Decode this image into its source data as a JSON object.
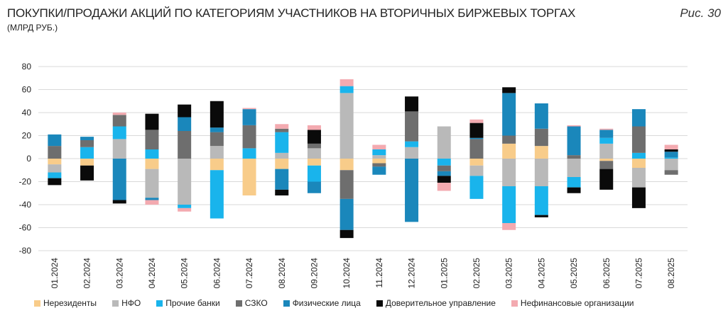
{
  "header": {
    "title": "ПОКУПКИ/ПРОДАЖИ АКЦИЙ ПО КАТЕГОРИЯМ УЧАСТНИКОВ НА ВТОРИЧНЫХ БИРЖЕВЫХ ТОРГАХ",
    "subtitle": "(МЛРД РУБ.)",
    "figure_label": "Рис. 30"
  },
  "colors": {
    "Нерезиденты": "#f8cc8a",
    "НФО": "#b9b9b9",
    "Прочие банки": "#19b4ec",
    "СЗКО": "#6e6e6e",
    "Физические лица": "#1a87bb",
    "Доверительное управление": "#0a0a0a",
    "Нефинансовые организации": "#f3aab0",
    "grid": "#d9d9d9"
  },
  "chart_data": {
    "type": "bar",
    "stacked": true,
    "title": "ПОКУПКИ/ПРОДАЖИ АКЦИЙ ПО КАТЕГОРИЯМ УЧАСТНИКОВ НА ВТОРИЧНЫХ БИРЖЕВЫХ ТОРГАХ",
    "subtitle": "(МЛРД РУБ.)",
    "xlabel": "",
    "ylabel": "",
    "ylim": [
      -80,
      80
    ],
    "yticks": [
      80,
      60,
      40,
      20,
      0,
      -20,
      -40,
      -60,
      -80
    ],
    "grid": true,
    "legend_position": "bottom",
    "categories": [
      "01.2024",
      "02.2024",
      "03.2024",
      "04.2024",
      "05.2024",
      "06.2024",
      "07.2024",
      "08.2024",
      "09.2024",
      "10.2024",
      "11.2024",
      "12.2024",
      "01.2025",
      "02.2025",
      "03.2025",
      "04.2025",
      "05.2025",
      "06.2025",
      "07.2025",
      "08.2025"
    ],
    "series": [
      {
        "name": "Нерезиденты",
        "values": [
          -5,
          -6,
          0,
          -9,
          0,
          -10,
          -32,
          -9,
          -6,
          -10,
          -4,
          0,
          0,
          -6,
          13,
          11,
          0,
          -2,
          -8,
          0
        ]
      },
      {
        "name": "НФО",
        "values": [
          -7,
          0,
          17,
          -25,
          -40,
          11,
          0,
          5,
          9,
          57,
          3,
          10,
          28,
          -9,
          -24,
          -24,
          -16,
          13,
          -17,
          -10
        ]
      },
      {
        "name": "Прочие банки",
        "values": [
          -5,
          10,
          11,
          8,
          -3,
          -42,
          9,
          18,
          -14,
          6,
          5,
          5,
          -6,
          -20,
          -32,
          -25,
          -9,
          5,
          5,
          1
        ]
      },
      {
        "name": "СЗКО",
        "values": [
          11,
          6,
          10,
          17,
          24,
          12,
          20,
          3,
          4,
          -25,
          -3,
          26,
          -5,
          17,
          7,
          15,
          3,
          -7,
          23,
          -4
        ]
      },
      {
        "name": "Физические лица",
        "values": [
          10,
          3,
          -36,
          -2,
          12,
          4,
          14,
          -18,
          -10,
          -27,
          -7,
          -55,
          -4,
          1,
          37,
          22,
          25,
          7,
          15,
          5
        ]
      },
      {
        "name": "Доверительное управление",
        "values": [
          -6,
          -13,
          -3,
          14,
          11,
          23,
          0,
          -5,
          12,
          -7,
          0,
          13,
          -6,
          13,
          5,
          -2,
          -5,
          -18,
          -18,
          2
        ]
      },
      {
        "name": "Нефинансовые организации",
        "values": [
          0,
          0,
          2,
          -4,
          -3,
          0,
          1,
          4,
          4,
          6,
          4,
          0,
          -7,
          3,
          -6,
          0,
          1,
          1,
          0,
          4
        ]
      }
    ]
  }
}
